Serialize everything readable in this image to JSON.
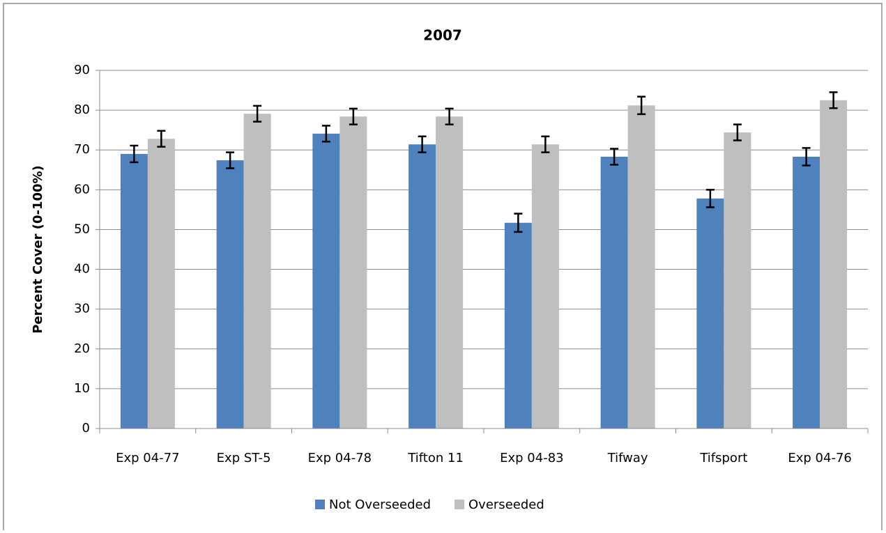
{
  "chart_data": {
    "type": "bar",
    "title": "2007",
    "y_label": "Percent Cover (0-100%)",
    "categories": [
      "Exp 04-77",
      "Exp ST-5",
      "Exp 04-78",
      "Tifton 11",
      "Exp 04-83",
      "Tifway",
      "Tifsport",
      "Exp 04-76"
    ],
    "series": [
      {
        "name": "Not Overseeded",
        "color": "#4f81bd",
        "values": [
          69.0,
          67.4,
          74.1,
          71.4,
          51.7,
          68.3,
          57.8,
          68.3
        ],
        "errors": [
          2.1,
          2.0,
          2.0,
          2.0,
          2.3,
          2.0,
          2.2,
          2.2
        ]
      },
      {
        "name": "Overseeded",
        "color": "#bfbfbf",
        "values": [
          72.8,
          79.1,
          78.4,
          78.4,
          71.4,
          81.2,
          74.4,
          82.5
        ],
        "errors": [
          2.0,
          2.0,
          2.0,
          2.0,
          2.0,
          2.2,
          2.0,
          2.0
        ]
      }
    ],
    "ylim": [
      0,
      90
    ],
    "yticks": [
      0,
      10,
      20,
      30,
      40,
      50,
      60,
      70,
      80,
      90
    ],
    "grid": true,
    "legend": "bottom"
  }
}
